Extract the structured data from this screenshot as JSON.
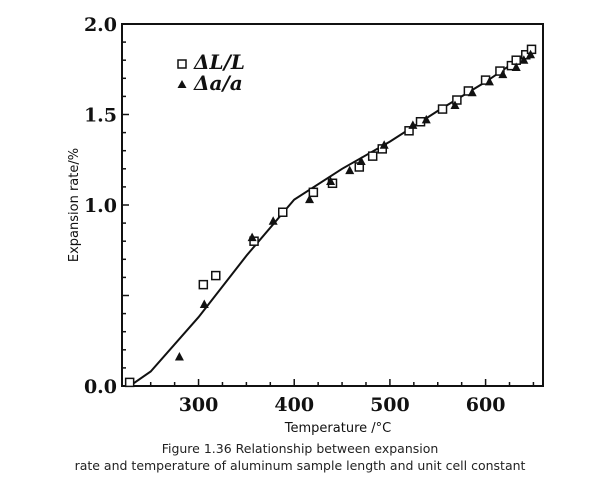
{
  "chart_data": {
    "type": "scatter",
    "title": "",
    "xlabel": "Temperature /°C",
    "ylabel": "Expansion rate/%",
    "xlim": [
      220,
      660
    ],
    "ylim": [
      0.0,
      2.0
    ],
    "x_ticks": [
      "300",
      "400",
      "500",
      "600"
    ],
    "y_ticks": [
      "0.0",
      "1.0",
      "1.5",
      "2.0"
    ],
    "x_tick_values": [
      300,
      400,
      500,
      600
    ],
    "y_tick_values": [
      0.0,
      1.0,
      1.5,
      2.0
    ],
    "legend_position": "top-left",
    "grid": false,
    "series": [
      {
        "name": "ΔL/L",
        "marker": "open-square",
        "x": [
          228,
          305,
          318,
          358,
          388,
          420,
          440,
          468,
          482,
          492,
          520,
          532,
          555,
          570,
          582,
          600,
          615,
          627,
          632,
          642,
          648
        ],
        "y": [
          0.02,
          0.56,
          0.61,
          0.8,
          0.96,
          1.07,
          1.12,
          1.21,
          1.27,
          1.31,
          1.41,
          1.46,
          1.53,
          1.58,
          1.63,
          1.69,
          1.74,
          1.77,
          1.8,
          1.83,
          1.86
        ]
      },
      {
        "name": "Δa/a",
        "marker": "filled-triangle",
        "x": [
          280,
          306,
          356,
          378,
          416,
          438,
          458,
          470,
          494,
          524,
          538,
          568,
          586,
          604,
          618,
          632,
          640,
          647
        ],
        "y": [
          0.16,
          0.45,
          0.82,
          0.91,
          1.03,
          1.13,
          1.19,
          1.24,
          1.33,
          1.44,
          1.47,
          1.55,
          1.62,
          1.68,
          1.72,
          1.76,
          1.8,
          1.83
        ]
      }
    ],
    "fit_line": {
      "x": [
        228,
        250,
        300,
        350,
        400,
        450,
        500,
        550,
        600,
        650
      ],
      "y": [
        0.0,
        0.08,
        0.38,
        0.72,
        1.03,
        1.2,
        1.35,
        1.52,
        1.68,
        1.86
      ]
    }
  },
  "caption": {
    "line1": "Figure 1.36 Relationship between expansion",
    "line2": "rate and temperature of aluminum sample length and unit cell constant"
  },
  "colors": {
    "ink": "#111111"
  }
}
